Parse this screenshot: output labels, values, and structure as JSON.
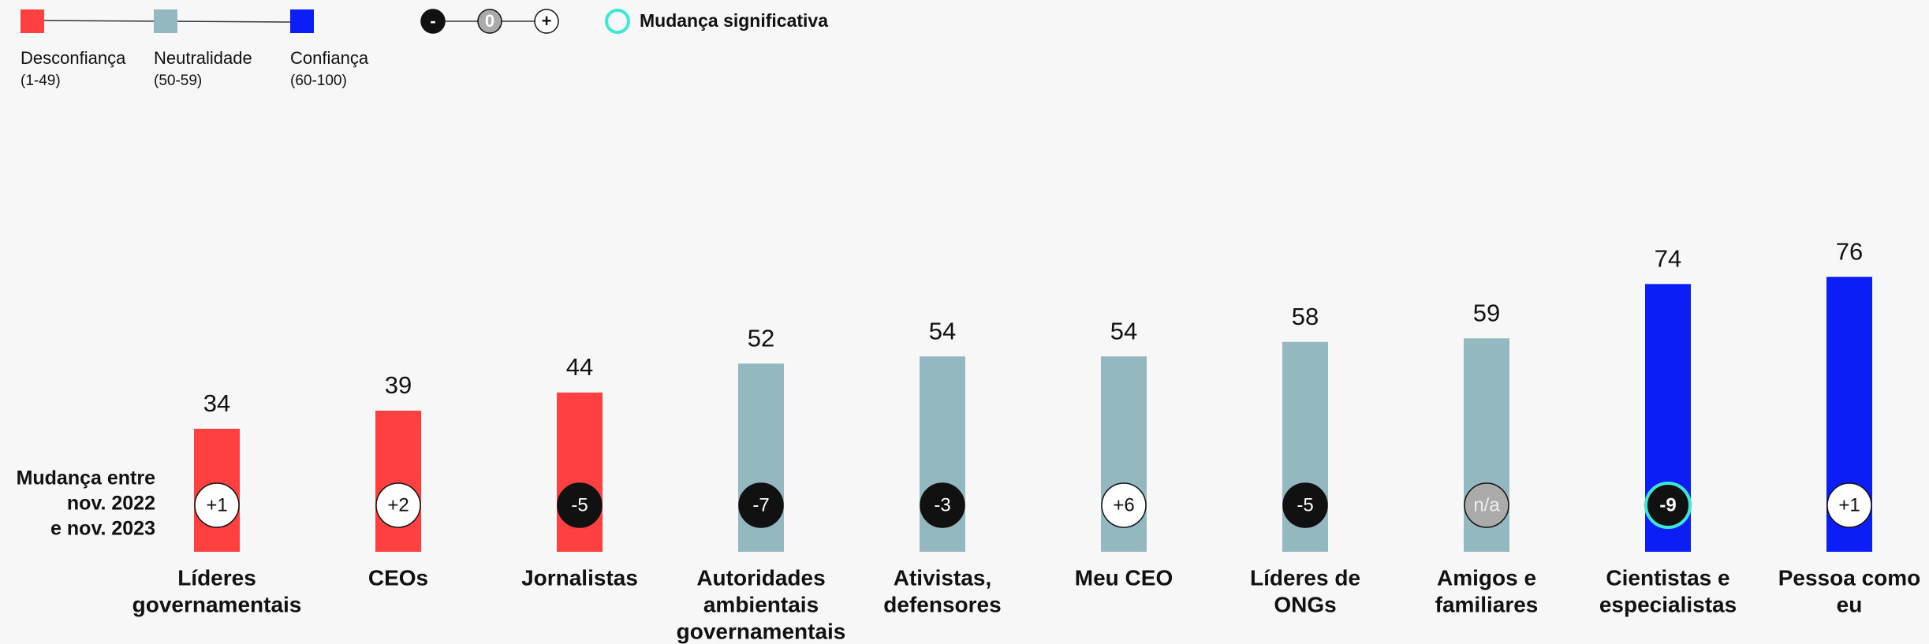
{
  "chart_data": {
    "type": "bar",
    "legend": {
      "ranges": [
        {
          "name": "Desconfiança",
          "range": "(1-49)",
          "color": "#ff4040"
        },
        {
          "name": "Neutralidade",
          "range": "(50-59)",
          "color": "#93b8bf"
        },
        {
          "name": "Confiança",
          "range": "(60-100)",
          "color": "#0a1ef5"
        }
      ],
      "change_scale": [
        "-",
        "0",
        "+"
      ],
      "significant": "Mudança significativa"
    },
    "change_title": [
      "Mudança entre",
      "nov. 2022",
      "e nov. 2023"
    ],
    "categories": [
      [
        "Líderes",
        "governamentais"
      ],
      [
        "CEOs"
      ],
      [
        "Jornalistas"
      ],
      [
        "Autoridades",
        "ambientais",
        "governamentais"
      ],
      [
        "Ativistas,",
        "defensores"
      ],
      [
        "Meu CEO"
      ],
      [
        "Líderes de",
        "ONGs"
      ],
      [
        "Amigos e",
        "familiares"
      ],
      [
        "Cientistas e",
        "especialistas"
      ],
      [
        "Pessoa como",
        "eu"
      ]
    ],
    "values": [
      34,
      39,
      44,
      52,
      54,
      54,
      58,
      59,
      74,
      76
    ],
    "colors": [
      "#ff4040",
      "#ff4040",
      "#ff4040",
      "#93b8bf",
      "#93b8bf",
      "#93b8bf",
      "#93b8bf",
      "#93b8bf",
      "#0a1ef5",
      "#0a1ef5"
    ],
    "changes": {
      "values": [
        1,
        2,
        -5,
        -7,
        -3,
        6,
        -5,
        null,
        -9,
        1
      ],
      "value_labels": [
        "+1",
        "+2",
        "-5",
        "-7",
        "-3",
        "+6",
        "-5",
        "n/a",
        "-9",
        "+1"
      ],
      "significant": [
        false,
        false,
        false,
        false,
        false,
        false,
        false,
        false,
        true,
        false
      ]
    }
  }
}
